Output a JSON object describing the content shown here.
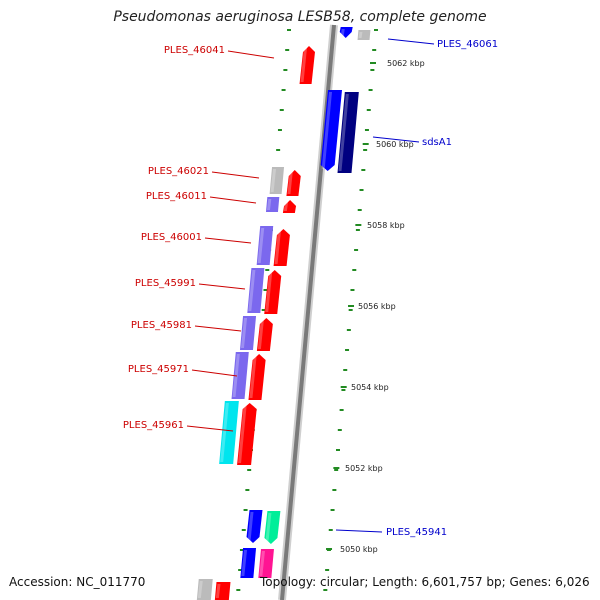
{
  "title": "Pseudomonas aeruginosa LESB58, complete genome",
  "footer": {
    "accession": "Accession: NC_011770",
    "summary": "Topology: circular; Length: 6,601,757 bp; Genes: 6,026"
  },
  "colors": {
    "backbone": "#888888",
    "tick": "#228b22",
    "red_label": "#cc0000",
    "blue_label": "#0000cc",
    "forward_gene": "#ff0000",
    "cog_purple": "#7b68ee",
    "cyan": "#00e5ee",
    "blue": "#0000ff",
    "navy": "#000080",
    "grey": "#bbbbbb",
    "mint": "#00ee99",
    "magenta": "#ff1493"
  },
  "scale_labels": [
    "5062 kbp",
    "5060 kbp",
    "5058 kbp",
    "5056 kbp",
    "5054 kbp",
    "5052 kbp",
    "5050 kbp"
  ],
  "gene_labels_left": [
    "PLES_46041",
    "PLES_46021",
    "PLES_46011",
    "PLES_46001",
    "PLES_45991",
    "PLES_45981",
    "PLES_45971",
    "PLES_45961"
  ],
  "gene_labels_right": [
    "PLES_46061",
    "sdsA1",
    "PLES_45941"
  ]
}
